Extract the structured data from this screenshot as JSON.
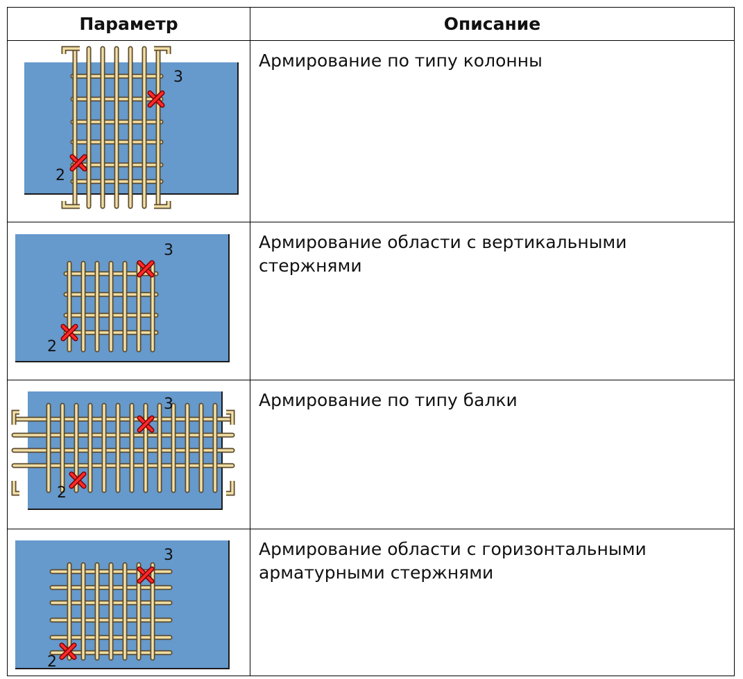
{
  "table": {
    "header": [
      "Параметр",
      "Описание"
    ],
    "rows": [
      {
        "description": "Армирование по типу колонны",
        "point_labels": [
          "2",
          "3"
        ]
      },
      {
        "description": "Армирование области с вертикальными стержнями",
        "point_labels": [
          "2",
          "3"
        ]
      },
      {
        "description": "Армирование по типу балки",
        "point_labels": [
          "2",
          "3"
        ]
      },
      {
        "description": "Армирование области с горизонтальными арматурными стержнями",
        "point_labels": [
          "2",
          "3"
        ]
      }
    ]
  }
}
